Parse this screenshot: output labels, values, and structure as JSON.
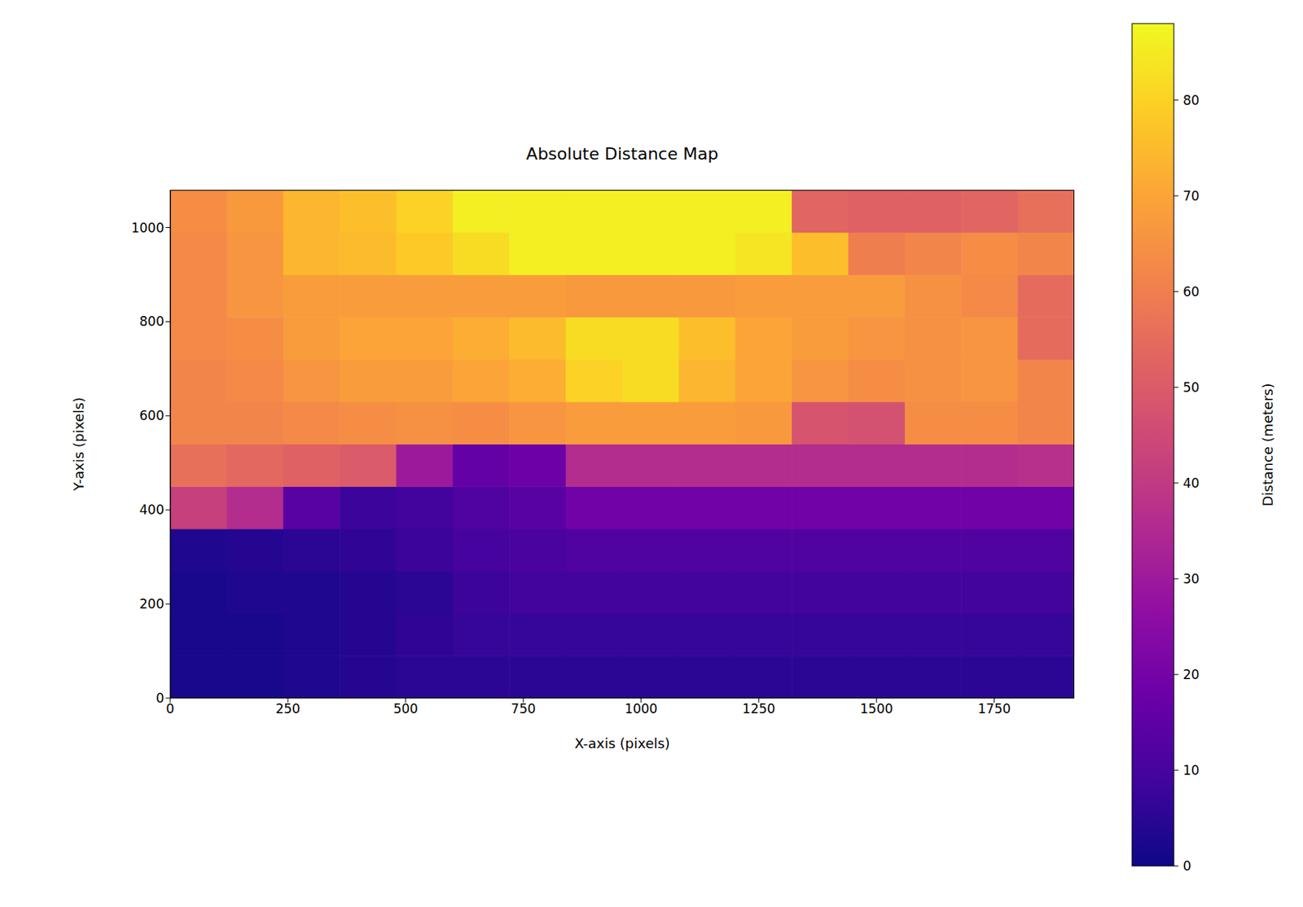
{
  "chart_data": {
    "type": "heatmap",
    "title": "Absolute Distance Map",
    "x_label": "X-axis (pixels)",
    "y_label": "Y-axis (pixels)",
    "xlim": [
      0,
      1920
    ],
    "ylim": [
      0,
      1080
    ],
    "xticks": [
      0,
      250,
      500,
      750,
      1000,
      1250,
      1500,
      1750
    ],
    "yticks": [
      0,
      200,
      400,
      600,
      800,
      1000
    ],
    "x": [
      60,
      180,
      300,
      420,
      540,
      660,
      780,
      900,
      1020,
      1140,
      1260,
      1380,
      1500,
      1620,
      1740,
      1860
    ],
    "y": [
      45,
      135,
      225,
      315,
      405,
      495,
      585,
      675,
      765,
      855,
      945,
      1035
    ],
    "cells": [
      [
        2,
        2,
        3,
        4,
        5,
        5,
        5,
        5,
        5,
        5,
        5,
        5,
        5,
        5,
        5,
        5
      ],
      [
        2,
        2,
        3,
        4,
        6,
        7,
        7,
        7,
        7,
        7,
        7,
        7,
        7,
        7,
        7,
        7
      ],
      [
        2,
        3,
        3,
        4,
        5,
        8,
        9,
        9,
        9,
        9,
        9,
        9,
        9,
        9,
        9,
        9
      ],
      [
        3,
        4,
        5,
        6,
        8,
        10,
        11,
        12,
        12,
        12,
        12,
        12,
        12,
        12,
        12,
        12
      ],
      [
        42,
        36,
        14,
        8,
        9,
        12,
        14,
        19,
        19,
        19,
        19,
        19,
        19,
        19,
        19,
        19
      ],
      [
        56,
        54,
        52,
        50,
        30,
        16,
        18,
        36,
        36,
        36,
        36,
        36,
        36,
        36,
        36,
        37
      ],
      [
        62,
        62,
        63,
        64,
        65,
        64,
        66,
        68,
        68,
        68,
        67,
        48,
        47,
        64,
        64,
        62
      ],
      [
        62,
        63,
        66,
        68,
        68,
        70,
        72,
        80,
        82,
        74,
        70,
        66,
        64,
        65,
        66,
        62
      ],
      [
        63,
        64,
        68,
        70,
        70,
        72,
        75,
        82,
        82,
        76,
        70,
        68,
        66,
        65,
        66,
        55
      ],
      [
        63,
        66,
        68,
        68,
        68,
        68,
        68,
        67,
        67,
        67,
        68,
        68,
        68,
        65,
        63,
        55
      ],
      [
        63,
        66,
        74,
        75,
        78,
        82,
        86,
        86,
        86,
        86,
        84,
        76,
        60,
        62,
        64,
        62
      ],
      [
        64,
        67,
        74,
        76,
        80,
        86,
        86,
        86,
        86,
        86,
        86,
        53,
        52,
        52,
        53,
        56
      ]
    ],
    "colorbar": {
      "label": "Distance (meters)",
      "range": [
        0,
        88
      ],
      "ticks": [
        0,
        10,
        20,
        30,
        40,
        50,
        60,
        70,
        80
      ]
    }
  }
}
